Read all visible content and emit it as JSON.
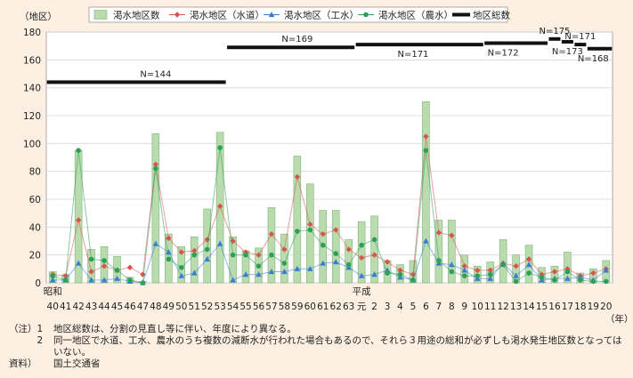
{
  "chart_data": {
    "type": "bar",
    "ylabel": "（地区）",
    "xlabel": "（年）",
    "ylim": [
      0,
      180
    ],
    "yticks": [
      0,
      20,
      40,
      60,
      80,
      100,
      120,
      140,
      160,
      180
    ],
    "grid": true,
    "legend_position": "top",
    "era_labels": [
      {
        "text": "昭和",
        "at": "40"
      },
      {
        "text": "平成",
        "at": "元"
      }
    ],
    "categories": [
      "40",
      "41",
      "42",
      "43",
      "44",
      "45",
      "46",
      "47",
      "48",
      "49",
      "50",
      "51",
      "52",
      "53",
      "54",
      "55",
      "56",
      "57",
      "58",
      "59",
      "60",
      "61",
      "62",
      "63",
      "元",
      "2",
      "3",
      "4",
      "5",
      "6",
      "7",
      "8",
      "9",
      "10",
      "11",
      "12",
      "13",
      "14",
      "15",
      "16",
      "17",
      "18",
      "19",
      "20"
    ],
    "series": [
      {
        "name": "渇水地区数",
        "type": "bar",
        "color": "#b9dbad",
        "values": [
          8,
          6,
          95,
          24,
          26,
          19,
          4,
          1,
          107,
          35,
          26,
          33,
          53,
          108,
          33,
          23,
          25,
          54,
          35,
          91,
          71,
          52,
          52,
          31,
          44,
          48,
          16,
          13,
          16,
          130,
          45,
          45,
          20,
          12,
          15,
          31,
          20,
          27,
          11,
          12,
          22,
          7,
          10,
          16
        ]
      },
      {
        "name": "渇水地区（水道）",
        "type": "line",
        "color": "#d9534f",
        "values": [
          6,
          5,
          45,
          8,
          12,
          9,
          11,
          6,
          85,
          32,
          22,
          23,
          31,
          55,
          30,
          22,
          20,
          35,
          24,
          76,
          42,
          35,
          38,
          24,
          18,
          20,
          15,
          9,
          6,
          105,
          36,
          34,
          12,
          9,
          9,
          14,
          12,
          17,
          6,
          8,
          10,
          5,
          7,
          10
        ]
      },
      {
        "name": "渇水地区（工水）",
        "type": "line",
        "color": "#3b7bd4",
        "values": [
          2,
          2,
          14,
          2,
          2,
          3,
          1,
          0,
          28,
          22,
          5,
          7,
          17,
          28,
          2,
          6,
          6,
          8,
          8,
          10,
          10,
          14,
          15,
          11,
          5,
          6,
          9,
          4,
          2,
          30,
          14,
          13,
          9,
          3,
          3,
          14,
          5,
          13,
          2,
          3,
          3,
          4,
          2,
          9
        ]
      },
      {
        "name": "渇水地区（農水）",
        "type": "line",
        "color": "#2e9e5b",
        "values": [
          5,
          2,
          95,
          17,
          16,
          9,
          2,
          0,
          82,
          17,
          11,
          20,
          24,
          97,
          20,
          20,
          12,
          20,
          14,
          37,
          38,
          27,
          21,
          13,
          27,
          31,
          7,
          6,
          2,
          95,
          16,
          8,
          5,
          5,
          6,
          13,
          1,
          7,
          4,
          2,
          8,
          2,
          1,
          1
        ]
      }
    ],
    "totals_series": {
      "name": "地区総数",
      "color": "#111111",
      "segments": [
        {
          "from": "40",
          "to": "53",
          "value": 144
        },
        {
          "from": "54",
          "to": "63",
          "value": 169
        },
        {
          "from": "元",
          "to": "10",
          "value": 171
        },
        {
          "from": "11",
          "to": "15",
          "value": 172
        },
        {
          "from": "16",
          "to": "16",
          "value": 175
        },
        {
          "from": "17",
          "to": "17",
          "value": 173
        },
        {
          "from": "18",
          "to": "18",
          "value": 171
        },
        {
          "from": "19",
          "to": "20",
          "value": 168
        }
      ]
    },
    "annotations": [
      {
        "text": "N=144",
        "at": "48",
        "value": 144,
        "pos": "above"
      },
      {
        "text": "N=169",
        "at": "59",
        "value": 169,
        "pos": "above"
      },
      {
        "text": "N=171",
        "at": "5",
        "value": 171,
        "pos": "below"
      },
      {
        "text": "N=172",
        "at": "12",
        "value": 172,
        "pos": "below"
      },
      {
        "text": "N=175",
        "at": "16",
        "value": 175,
        "pos": "above"
      },
      {
        "text": "N=173",
        "at": "17",
        "value": 173,
        "pos": "below"
      },
      {
        "text": "N=171",
        "at": "18",
        "value": 171,
        "pos": "above"
      },
      {
        "text": "N=168",
        "at": "19",
        "value": 168,
        "pos": "below"
      }
    ]
  },
  "notes": [
    {
      "head": "（注）1",
      "text": "地区総数は、分割の見直し等に伴い、年度により異なる。"
    },
    {
      "head": "　　　2",
      "text": "同一地区で水道、工水、農水のうち複数の減断水が行われた場合もあるので、それら３用途の総和が必ずしも渇水発生地区数となってはいない。"
    }
  ],
  "source": {
    "head": "資料）",
    "text": "国土交通省"
  }
}
